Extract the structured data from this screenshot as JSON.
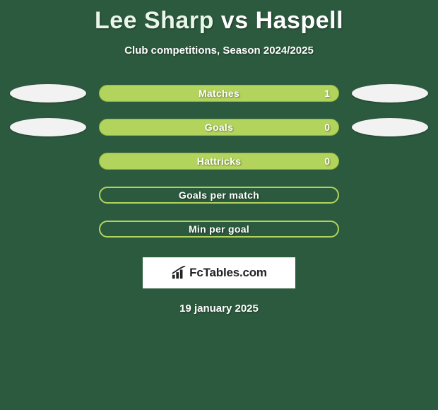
{
  "title": {
    "player1": "Lee Sharp",
    "vs": "vs",
    "player2": "Haspell"
  },
  "subtitle": "Club competitions, Season 2024/2025",
  "rows": [
    {
      "label": "Matches",
      "value": "1",
      "filled": true,
      "show_ovals": true
    },
    {
      "label": "Goals",
      "value": "0",
      "filled": true,
      "show_ovals": true
    },
    {
      "label": "Hattricks",
      "value": "0",
      "filled": true,
      "show_ovals": false
    },
    {
      "label": "Goals per match",
      "value": "",
      "filled": false,
      "show_ovals": false
    },
    {
      "label": "Min per goal",
      "value": "",
      "filled": false,
      "show_ovals": false
    }
  ],
  "logo_text": "FcTables.com",
  "date": "19 january 2025",
  "colors": {
    "background": "#2c5a3e",
    "bar_fill": "#b3d45c",
    "oval": "#f2f2f2"
  }
}
